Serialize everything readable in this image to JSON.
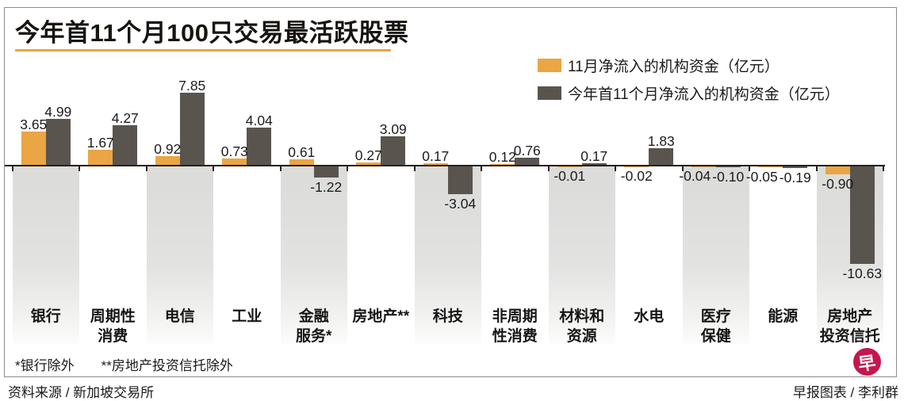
{
  "title": "今年首11个月100只交易最活跃股票",
  "colors": {
    "accent_orange": "#EAA544",
    "bar_november": "#EAA544",
    "bar_ytd": "#5A544F",
    "band_gray": "#DBDBDA",
    "axis": "#26201A",
    "logo_red": "#C5174D"
  },
  "legend": [
    {
      "label": "11月净流入的机构资金（亿元）",
      "color": "#EAA544"
    },
    {
      "label": "今年首11个月净流入的机构资金（亿元）",
      "color": "#5A544F"
    }
  ],
  "chart_data": {
    "type": "bar",
    "title": "今年首11个月100只交易最活跃股票",
    "xlabel": "",
    "ylabel": "净流入的机构资金（亿元）",
    "ylim": [
      -10.63,
      7.85
    ],
    "grid": false,
    "legend_position": "top-right",
    "categories": [
      "银行",
      "周期性消费",
      "电信",
      "工业",
      "金融服务*",
      "房地产**",
      "科技",
      "非周期性消费",
      "材料和资源",
      "水电",
      "医疗保健",
      "能源",
      "房地产投资信托"
    ],
    "category_lines": [
      [
        "银行"
      ],
      [
        "周期性",
        "消费"
      ],
      [
        "电信"
      ],
      [
        "工业"
      ],
      [
        "金融",
        "服务*"
      ],
      [
        "房地产**"
      ],
      [
        "科技"
      ],
      [
        "非周期",
        "性消费"
      ],
      [
        "材料和",
        "资源"
      ],
      [
        "水电"
      ],
      [
        "医疗",
        "保健"
      ],
      [
        "能源"
      ],
      [
        "房地产",
        "投资信托"
      ]
    ],
    "series": [
      {
        "name": "11月净流入的机构资金（亿元）",
        "values": [
          3.65,
          1.67,
          0.92,
          0.73,
          0.61,
          0.27,
          0.17,
          0.12,
          -0.01,
          -0.02,
          -0.04,
          -0.05,
          -0.9
        ]
      },
      {
        "name": "今年首11个月净流入的机构资金（亿元）",
        "values": [
          4.99,
          4.27,
          7.85,
          4.04,
          -1.22,
          3.09,
          -3.04,
          0.76,
          0.17,
          1.83,
          -0.1,
          -0.19,
          -10.63
        ]
      }
    ]
  },
  "footnotes": {
    "note1": "*银行除外",
    "note2": "**房地产投资信托除外"
  },
  "source": "资料来源 / 新加坡交易所",
  "credit": "早报图表 / 李利群",
  "logo_char": "早"
}
